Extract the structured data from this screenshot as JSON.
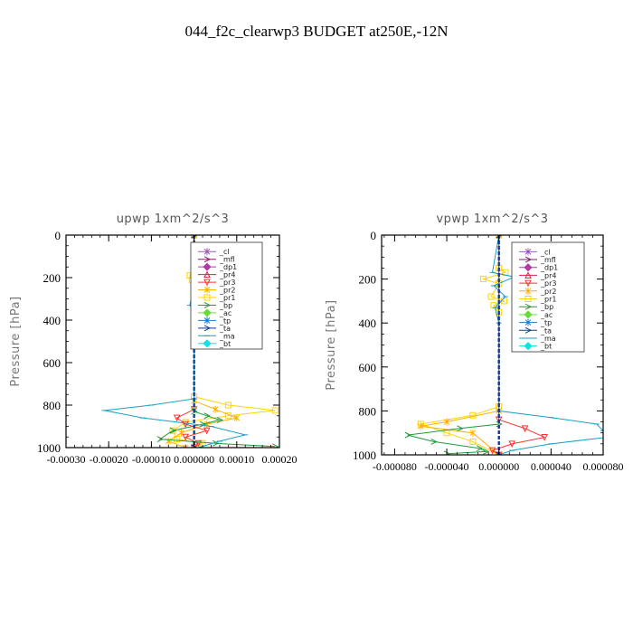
{
  "title": "044_f2c_clearwp3  BUDGET at250E,-12N",
  "legend_items": [
    {
      "label": "_cl",
      "color": "#9b59b6",
      "marker": "star"
    },
    {
      "label": "_mfl",
      "color": "#7b1f6e",
      "marker": "arrow"
    },
    {
      "label": "_dp1",
      "color": "#b03aa8",
      "marker": "diamond"
    },
    {
      "label": "_pr4",
      "color": "#d91e4a",
      "marker": "triangle"
    },
    {
      "label": "_pr3",
      "color": "#ff3030",
      "marker": "tri-down"
    },
    {
      "label": "_pr2",
      "color": "#ffb000",
      "marker": "star"
    },
    {
      "label": "_pr1",
      "color": "#ffd400",
      "marker": "square"
    },
    {
      "label": "_bp",
      "color": "#1e9c3a",
      "marker": "arrow"
    },
    {
      "label": "_ac",
      "color": "#66dd33",
      "marker": "diamond"
    },
    {
      "label": "_tp",
      "color": "#1f78c8",
      "marker": "star"
    },
    {
      "label": "_ta",
      "color": "#0b3d91",
      "marker": "arrow"
    },
    {
      "label": "_ma",
      "color": "#1aa0c8",
      "marker": "line"
    },
    {
      "label": "_bt",
      "color": "#00e5e5",
      "marker": "diamond"
    }
  ],
  "chart_data": [
    {
      "type": "line",
      "title": "upwp   1xm^2/s^3",
      "ylabel": "Pressure [hPa]",
      "xlim": [
        -0.0003,
        0.0002
      ],
      "ylim": [
        1000,
        0
      ],
      "xticks": [
        -0.0003,
        -0.0002,
        -0.0001,
        0.0,
        0.0001,
        0.0002
      ],
      "xtick_labels": [
        "-0.00030",
        "-0.00020",
        "-0.00010",
        "0.000000",
        "0.00010",
        "0.00020"
      ],
      "yticks": [
        0,
        200,
        400,
        600,
        800,
        1000
      ],
      "ytick_labels": [
        "0",
        "200",
        "400",
        "600",
        "800",
        "1000"
      ],
      "legend_position": "top-right",
      "series": [
        {
          "name": "_pr1",
          "color": "#ffd400",
          "values": [
            [
              0,
              0
            ],
            [
              0,
              150
            ],
            [
              -1e-05,
              190
            ],
            [
              -5e-06,
              210
            ],
            [
              0,
              250
            ],
            [
              0,
              760
            ],
            [
              8e-05,
              800
            ],
            [
              0.00019,
              825
            ],
            [
              8e-05,
              850
            ],
            [
              -2e-05,
              880
            ],
            [
              -5e-05,
              920
            ],
            [
              -4e-05,
              960
            ],
            [
              2e-05,
              980
            ],
            [
              0,
              1000
            ]
          ]
        },
        {
          "name": "_pr2",
          "color": "#ffb000",
          "values": [
            [
              0,
              0
            ],
            [
              0,
              780
            ],
            [
              5e-05,
              820
            ],
            [
              0.0001,
              860
            ],
            [
              3e-05,
              890
            ],
            [
              -3e-05,
              930
            ],
            [
              -6e-05,
              970
            ],
            [
              -2e-05,
              1000
            ]
          ]
        },
        {
          "name": "_pr3",
          "color": "#ff3030",
          "values": [
            [
              0,
              0
            ],
            [
              0,
              820
            ],
            [
              -4e-05,
              860
            ],
            [
              -2e-05,
              890
            ],
            [
              3e-05,
              920
            ],
            [
              -2e-05,
              950
            ],
            [
              1e-05,
              980
            ],
            [
              0,
              1000
            ]
          ]
        },
        {
          "name": "_bp",
          "color": "#1e9c3a",
          "values": [
            [
              0,
              0
            ],
            [
              0,
              830
            ],
            [
              3e-05,
              850
            ],
            [
              6e-05,
              870
            ],
            [
              2e-05,
              890
            ],
            [
              -5e-05,
              920
            ],
            [
              -8e-05,
              960
            ],
            [
              5e-05,
              980
            ],
            [
              0.00019,
              995
            ]
          ]
        },
        {
          "name": "_ma",
          "color": "#1aa0c8",
          "values": [
            [
              0,
              0
            ],
            [
              0,
              180
            ],
            [
              2e-05,
              200
            ],
            [
              0,
              230
            ],
            [
              -1e-05,
              330
            ],
            [
              0,
              360
            ],
            [
              0,
              770
            ],
            [
              -0.0001,
              800
            ],
            [
              -0.00021,
              825
            ],
            [
              -0.00012,
              860
            ],
            [
              4e-05,
              900
            ],
            [
              0.00012,
              940
            ],
            [
              6e-05,
              970
            ],
            [
              1e-05,
              1000
            ]
          ]
        },
        {
          "name": "_mfl",
          "color": "#7b1f6e",
          "values": [
            [
              0,
              0
            ],
            [
              0,
              1000
            ]
          ]
        },
        {
          "name": "_ta",
          "color": "#0b3d91",
          "values": [
            [
              0,
              0
            ],
            [
              0,
              1000
            ]
          ]
        }
      ]
    },
    {
      "type": "line",
      "title": "vpwp   1xm^2/s^3",
      "ylabel": "Pressure [hPa]",
      "xlim": [
        -9e-05,
        8e-05
      ],
      "ylim": [
        1000,
        0
      ],
      "xticks": [
        -8e-05,
        -4e-05,
        0.0,
        4e-05,
        8e-05
      ],
      "xtick_labels": [
        "-0.000080",
        "-0.000040",
        "0.000000",
        "0.000040",
        "0.000080"
      ],
      "yticks": [
        0,
        200,
        400,
        600,
        800,
        1000
      ],
      "ytick_labels": [
        "0",
        "200",
        "400",
        "600",
        "800",
        "1000"
      ],
      "legend_position": "top-right",
      "series": [
        {
          "name": "_pr1",
          "color": "#ffd400",
          "values": [
            [
              0,
              0
            ],
            [
              0,
              150
            ],
            [
              5e-06,
              170
            ],
            [
              -1.2e-05,
              200
            ],
            [
              0,
              220
            ],
            [
              -6e-06,
              280
            ],
            [
              4e-06,
              300
            ],
            [
              -4e-06,
              320
            ],
            [
              0,
              350
            ],
            [
              0,
              780
            ],
            [
              -2e-05,
              820
            ],
            [
              -6e-05,
              860
            ],
            [
              -4e-05,
              900
            ],
            [
              -2e-05,
              940
            ],
            [
              0,
              1000
            ]
          ]
        },
        {
          "name": "_pr2",
          "color": "#ffb000",
          "values": [
            [
              0,
              0
            ],
            [
              0,
              800
            ],
            [
              -4e-05,
              850
            ],
            [
              -6e-05,
              870
            ],
            [
              -2e-05,
              900
            ],
            [
              0,
              1000
            ]
          ]
        },
        {
          "name": "_pr3",
          "color": "#ff3030",
          "values": [
            [
              0,
              0
            ],
            [
              0,
              840
            ],
            [
              2e-05,
              880
            ],
            [
              3.5e-05,
              920
            ],
            [
              1e-05,
              950
            ],
            [
              -5e-06,
              980
            ],
            [
              0,
              1000
            ]
          ]
        },
        {
          "name": "_bp",
          "color": "#1e9c3a",
          "values": [
            [
              0,
              0
            ],
            [
              0,
              860
            ],
            [
              -3e-05,
              880
            ],
            [
              -7e-05,
              910
            ],
            [
              -5e-05,
              940
            ],
            [
              -1.5e-05,
              970
            ],
            [
              -1e-05,
              985
            ],
            [
              -4e-05,
              995
            ]
          ]
        },
        {
          "name": "_ma",
          "color": "#1aa0c8",
          "values": [
            [
              0,
              0
            ],
            [
              -5e-06,
              170
            ],
            [
              1.2e-05,
              190
            ],
            [
              -4e-06,
              230
            ],
            [
              5e-06,
              280
            ],
            [
              -3e-06,
              330
            ],
            [
              0,
              400
            ],
            [
              0,
              800
            ],
            [
              4e-05,
              830
            ],
            [
              7.5e-05,
              860
            ],
            [
              8e-05,
              890
            ],
            [
              8.2e-05,
              920
            ],
            [
              4e-05,
              950
            ],
            [
              1e-05,
              980
            ],
            [
              0,
              1000
            ]
          ]
        },
        {
          "name": "_mfl",
          "color": "#7b1f6e",
          "values": [
            [
              0,
              0
            ],
            [
              0,
              1000
            ]
          ]
        },
        {
          "name": "_ta",
          "color": "#0b3d91",
          "values": [
            [
              0,
              0
            ],
            [
              0,
              1000
            ]
          ]
        }
      ]
    }
  ]
}
